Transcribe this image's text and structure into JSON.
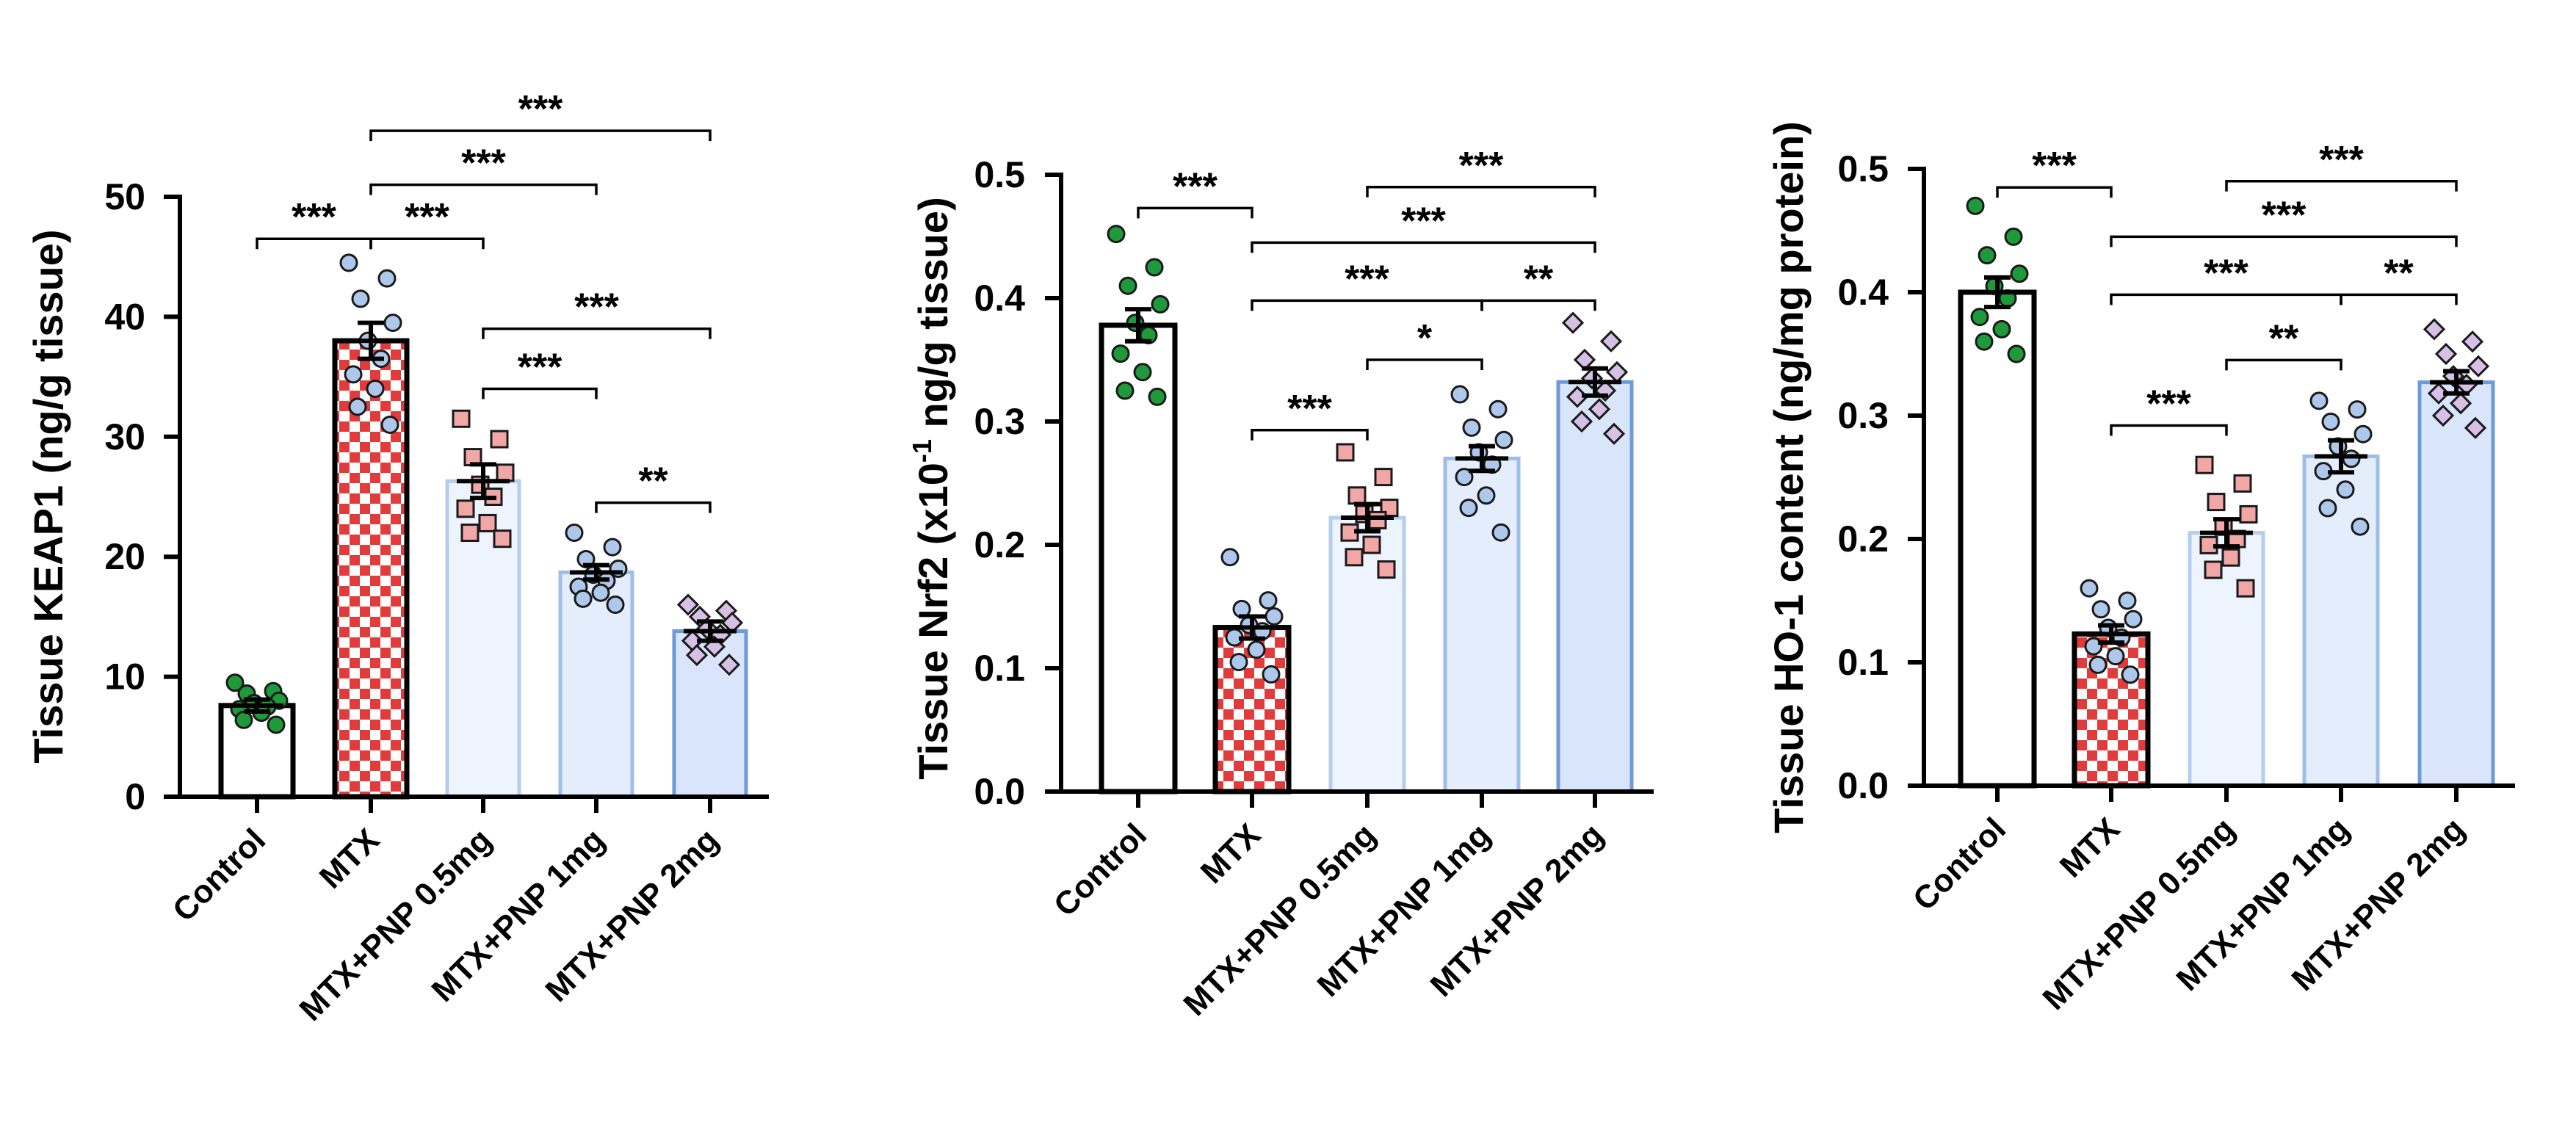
{
  "chart_data": [
    {
      "type": "bar",
      "ylabel": "Tissue KEAP1 (ng/g tissue)",
      "ylim": [
        0,
        50
      ],
      "yticks": [
        0,
        10,
        20,
        30,
        40,
        50
      ],
      "tick_format": "int",
      "categories": [
        "Control",
        "MTX",
        "MTX+PNP 0.5mg",
        "MTX+PNP 1mg",
        "MTX+PNP 2mg"
      ],
      "values": [
        7.6,
        38.0,
        26.3,
        18.7,
        13.8
      ],
      "sem": [
        0.5,
        1.5,
        1.4,
        0.6,
        0.8
      ],
      "points": [
        [
          9.5,
          8.8,
          8.6,
          8.0,
          7.8,
          7.5,
          7.3,
          7.0,
          6.4,
          6.0
        ],
        [
          44.5,
          43.2,
          41.5,
          39.5,
          38.0,
          36.5,
          35.2,
          34.0,
          32.5,
          31.0
        ],
        [
          31.5,
          29.8,
          28.3,
          27.0,
          26.0,
          25.0,
          24.0,
          22.8,
          22.0,
          21.5
        ],
        [
          22.0,
          20.8,
          19.8,
          19.0,
          18.5,
          18.0,
          17.5,
          17.0,
          16.5,
          16.0
        ],
        [
          16.0,
          15.5,
          15.0,
          14.5,
          14.0,
          13.5,
          13.0,
          12.5,
          11.8,
          11.0
        ]
      ],
      "brackets": [
        {
          "from": 0,
          "to": 1,
          "y": 46.5,
          "label": "***"
        },
        {
          "from": 1,
          "to": 4,
          "y": 55.5,
          "label": "***"
        },
        {
          "from": 1,
          "to": 3,
          "y": 51.0,
          "label": "***"
        },
        {
          "from": 1,
          "to": 2,
          "y": 46.5,
          "label": "***"
        },
        {
          "from": 2,
          "to": 4,
          "y": 39.0,
          "label": "***"
        },
        {
          "from": 2,
          "to": 3,
          "y": 34.0,
          "label": "***"
        },
        {
          "from": 3,
          "to": 4,
          "y": 24.5,
          "label": "**"
        }
      ]
    },
    {
      "type": "bar",
      "ylabel": "Tissue Nrf2 (x10",
      "ylabel_sup": "-1",
      "ylabel_tail": " ng/g tissue)",
      "ylim": [
        0,
        0.5
      ],
      "yticks": [
        0.0,
        0.1,
        0.2,
        0.3,
        0.4,
        0.5
      ],
      "tick_format": "1dp",
      "categories": [
        "Control",
        "MTX",
        "MTX+PNP 0.5mg",
        "MTX+PNP 1mg",
        "MTX+PNP 2mg"
      ],
      "values": [
        0.378,
        0.133,
        0.222,
        0.27,
        0.332
      ],
      "sem": [
        0.013,
        0.009,
        0.011,
        0.01,
        0.011
      ],
      "points": [
        [
          0.452,
          0.425,
          0.41,
          0.395,
          0.38,
          0.37,
          0.355,
          0.34,
          0.325,
          0.32
        ],
        [
          0.19,
          0.155,
          0.148,
          0.142,
          0.135,
          0.13,
          0.125,
          0.115,
          0.105,
          0.095
        ],
        [
          0.275,
          0.255,
          0.24,
          0.23,
          0.225,
          0.22,
          0.21,
          0.2,
          0.19,
          0.18
        ],
        [
          0.322,
          0.31,
          0.295,
          0.285,
          0.275,
          0.265,
          0.255,
          0.24,
          0.23,
          0.21
        ],
        [
          0.38,
          0.365,
          0.35,
          0.34,
          0.335,
          0.325,
          0.32,
          0.31,
          0.3,
          0.29
        ]
      ],
      "brackets": [
        {
          "from": 0,
          "to": 1,
          "y": 0.473,
          "label": "***"
        },
        {
          "from": 2,
          "to": 4,
          "y": 0.49,
          "label": "***"
        },
        {
          "from": 1,
          "to": 4,
          "y": 0.445,
          "label": "***"
        },
        {
          "from": 1,
          "to": 3,
          "y": 0.398,
          "label": "***"
        },
        {
          "from": 3,
          "to": 4,
          "y": 0.398,
          "label": "**"
        },
        {
          "from": 2,
          "to": 3,
          "y": 0.35,
          "label": "*"
        },
        {
          "from": 1,
          "to": 2,
          "y": 0.293,
          "label": "***"
        }
      ]
    },
    {
      "type": "bar",
      "ylabel": "Tissue HO-1 content (ng/mg protein)",
      "ylim": [
        0,
        0.5
      ],
      "yticks": [
        0.0,
        0.1,
        0.2,
        0.3,
        0.4,
        0.5
      ],
      "tick_format": "1dp",
      "categories": [
        "Control",
        "MTX",
        "MTX+PNP 0.5mg",
        "MTX+PNP 1mg",
        "MTX+PNP 2mg"
      ],
      "values": [
        0.4,
        0.123,
        0.205,
        0.267,
        0.327
      ],
      "sem": [
        0.012,
        0.007,
        0.011,
        0.013,
        0.009
      ],
      "points": [
        [
          0.47,
          0.445,
          0.43,
          0.415,
          0.405,
          0.395,
          0.38,
          0.37,
          0.36,
          0.35
        ],
        [
          0.16,
          0.15,
          0.143,
          0.135,
          0.128,
          0.12,
          0.113,
          0.105,
          0.098,
          0.09
        ],
        [
          0.26,
          0.245,
          0.23,
          0.22,
          0.21,
          0.2,
          0.195,
          0.185,
          0.175,
          0.16
        ],
        [
          0.312,
          0.305,
          0.295,
          0.285,
          0.275,
          0.265,
          0.255,
          0.24,
          0.225,
          0.21
        ],
        [
          0.37,
          0.36,
          0.35,
          0.34,
          0.332,
          0.325,
          0.318,
          0.31,
          0.3,
          0.29
        ]
      ],
      "brackets": [
        {
          "from": 0,
          "to": 1,
          "y": 0.485,
          "label": "***"
        },
        {
          "from": 2,
          "to": 4,
          "y": 0.49,
          "label": "***"
        },
        {
          "from": 1,
          "to": 4,
          "y": 0.445,
          "label": "***"
        },
        {
          "from": 1,
          "to": 3,
          "y": 0.398,
          "label": "***"
        },
        {
          "from": 3,
          "to": 4,
          "y": 0.398,
          "label": "**"
        },
        {
          "from": 2,
          "to": 3,
          "y": 0.345,
          "label": "**"
        },
        {
          "from": 1,
          "to": 2,
          "y": 0.292,
          "label": "***"
        }
      ]
    }
  ],
  "styles": {
    "bar_fills": [
      "#ffffff",
      "checker",
      "#eef4fd",
      "#e3edfb",
      "#d8e5fa"
    ],
    "bar_strokes": [
      "#000000",
      "#000000",
      "#b5cdee",
      "#9fbde9",
      "#6f9ad9"
    ],
    "checker_colors": [
      "#e23b3b",
      "#ffffff"
    ],
    "point_fills": [
      "#1f9a3a",
      "#aec8ec",
      "#f2a7a7",
      "#aec8ec",
      "#d7c0e6"
    ],
    "point_shapes": [
      "circle",
      "circle",
      "square",
      "circle",
      "diamond"
    ],
    "point_stroke": "#1a1a1a"
  }
}
